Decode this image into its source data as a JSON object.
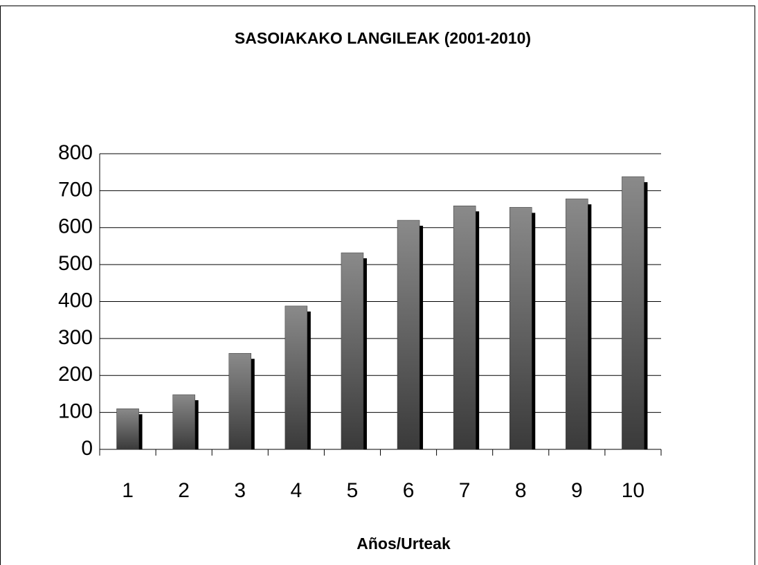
{
  "chart_data": {
    "type": "bar",
    "title": "SASOIAKAKO LANGILEAK (2001-2010)",
    "x_label": "Años/Urteak",
    "categories": [
      "1",
      "2",
      "3",
      "4",
      "5",
      "6",
      "7",
      "8",
      "9",
      "10"
    ],
    "values": [
      110,
      148,
      260,
      388,
      532,
      620,
      659,
      655,
      678,
      738
    ],
    "ylim": [
      0,
      800
    ],
    "yticks": [
      0,
      100,
      200,
      300,
      400,
      500,
      600,
      700,
      800
    ],
    "grid": true
  }
}
